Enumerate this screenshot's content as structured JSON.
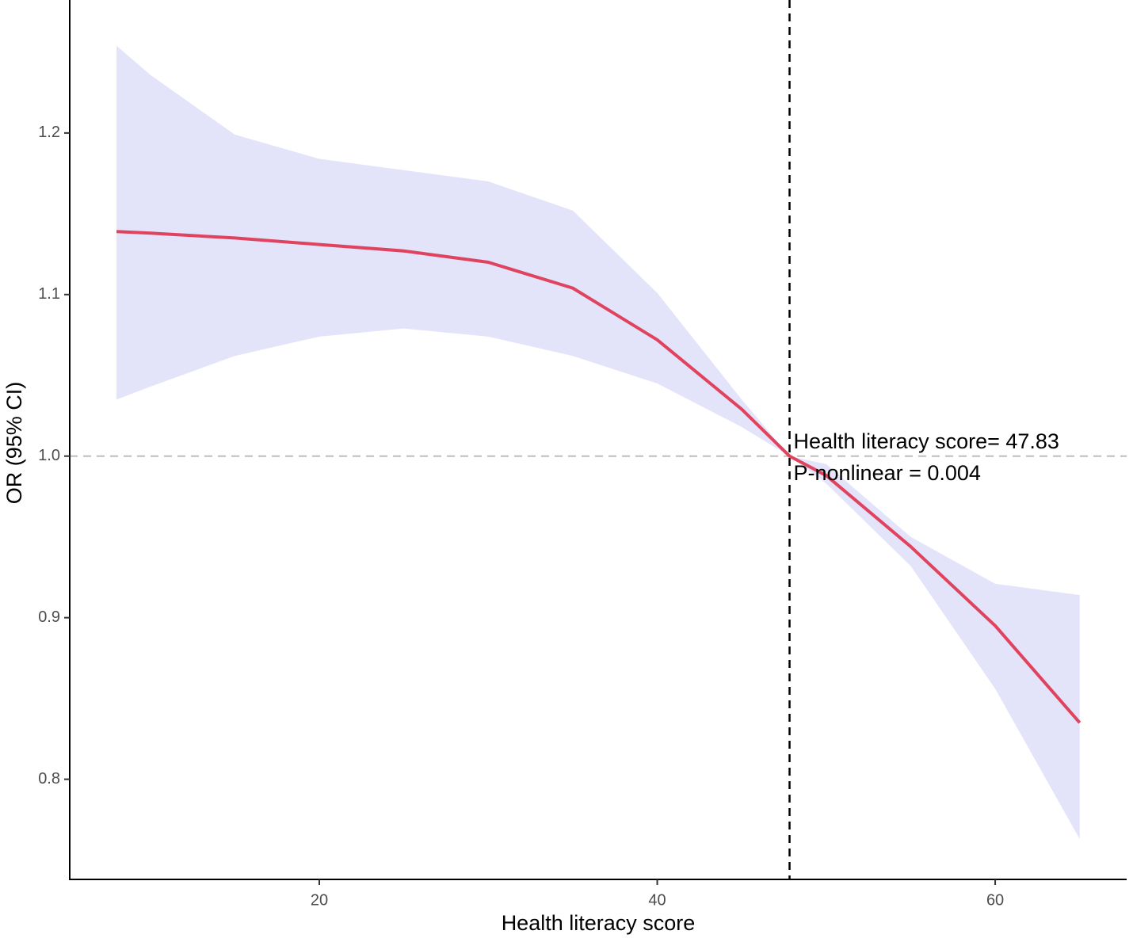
{
  "chart_data": {
    "type": "line",
    "x_label": "Health literacy score",
    "y_label": "OR (95% CI)",
    "x": [
      8,
      10,
      15,
      20,
      25,
      30,
      35,
      40,
      45,
      47.83,
      50,
      55,
      60,
      65
    ],
    "values": [
      1.139,
      1.138,
      1.135,
      1.131,
      1.127,
      1.12,
      1.104,
      1.072,
      1.029,
      1.0,
      0.988,
      0.944,
      0.895,
      0.835
    ],
    "lower": [
      1.035,
      1.043,
      1.062,
      1.074,
      1.079,
      1.074,
      1.062,
      1.045,
      1.018,
      1.0,
      0.983,
      0.932,
      0.856,
      0.763
    ],
    "upper": [
      1.254,
      1.236,
      1.199,
      1.184,
      1.177,
      1.17,
      1.152,
      1.101,
      1.035,
      1.0,
      0.995,
      0.95,
      0.921,
      0.914
    ],
    "color": "#e0435e",
    "band_color": "#e3e3fa",
    "vline": 47.83,
    "hline": 1.0,
    "annotations": [
      "Health literacy score= 47.83",
      "P-nonlinear = 0.004"
    ],
    "xlim": [
      5.23,
      67.78
    ],
    "ylim": [
      0.738,
      1.2784
    ],
    "xticks": [
      20,
      40,
      60
    ],
    "yticks": [
      0.8,
      0.9,
      {
        "value": 1,
        "label": "1.0"
      },
      1.1,
      1.2
    ],
    "grid": false
  }
}
